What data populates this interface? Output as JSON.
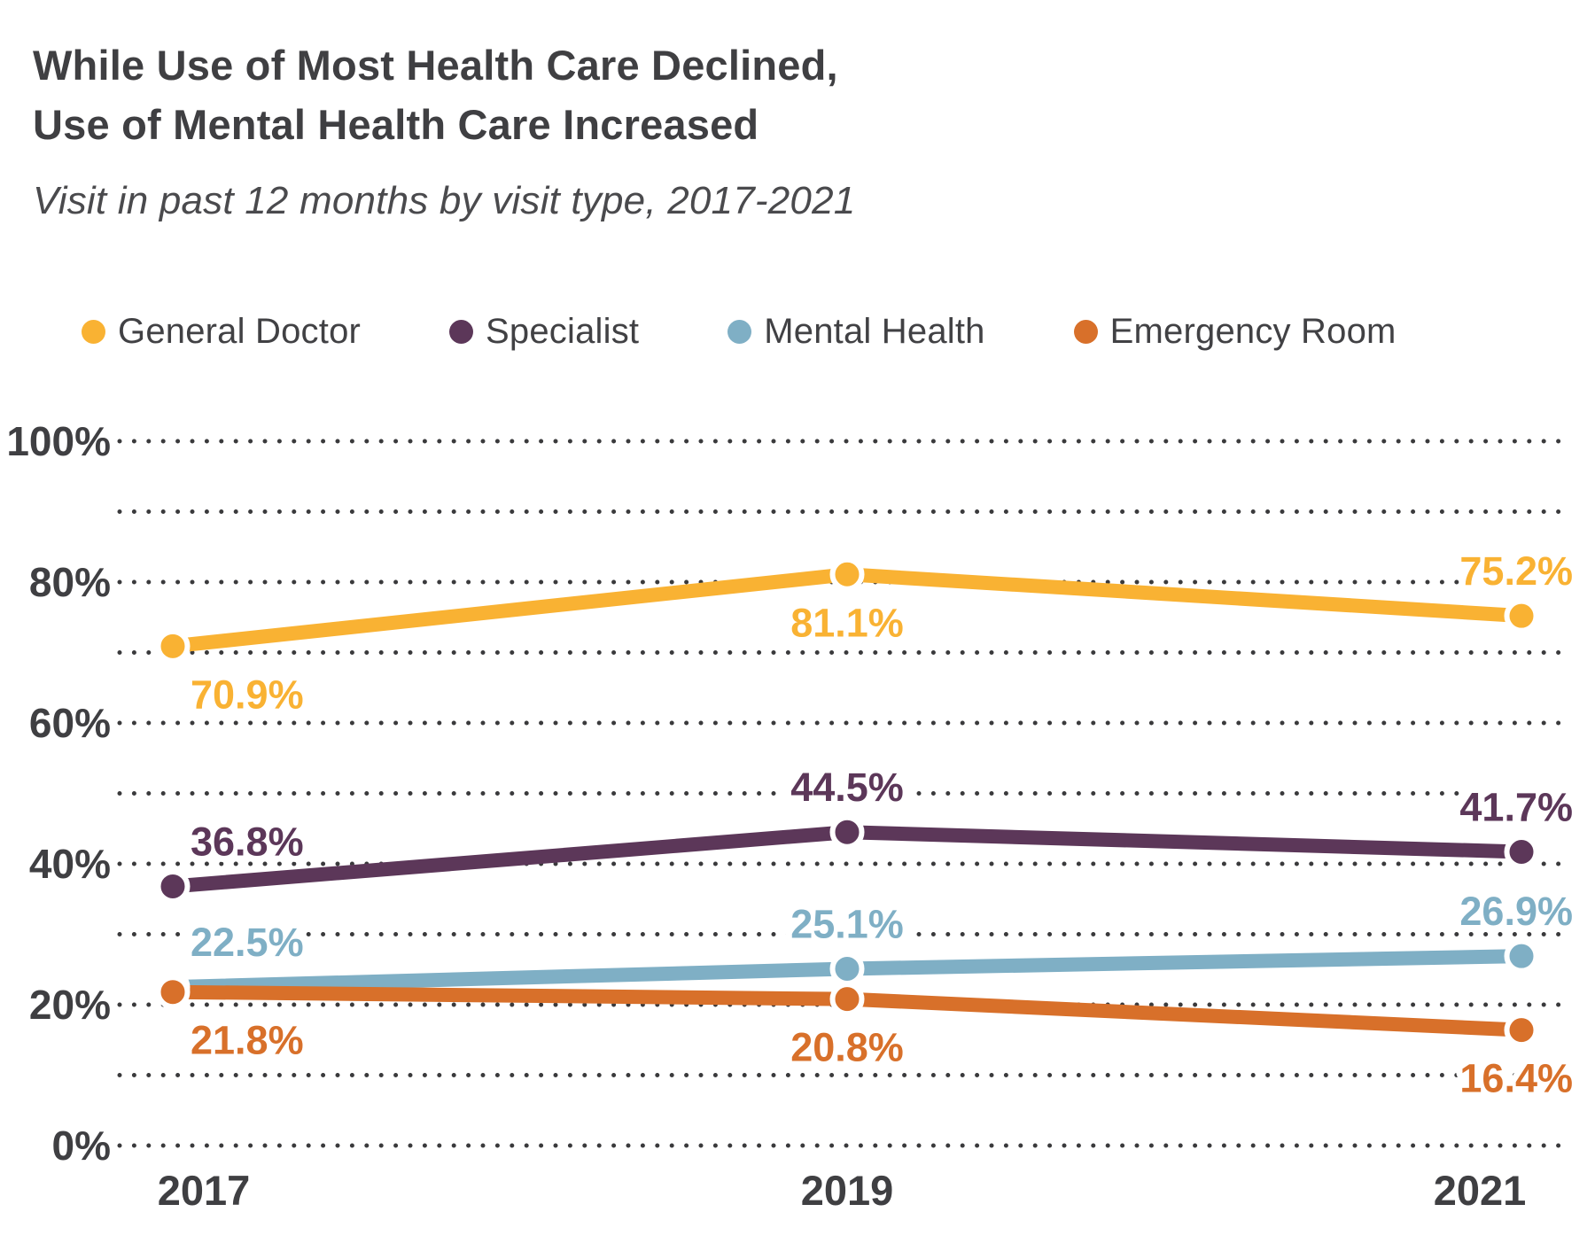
{
  "title": {
    "line1": "While Use of Most Health Care Declined,",
    "line2": "Use of Mental Health Care Increased"
  },
  "subtitle": "Visit in past 12 months by visit type, 2017-2021",
  "chart_data": {
    "type": "line",
    "x": [
      "2017",
      "2019",
      "2021"
    ],
    "series": [
      {
        "name": "General Doctor",
        "color": "#F9B233",
        "values": [
          70.9,
          81.1,
          75.2
        ],
        "point_labels": [
          "70.9%",
          "81.1%",
          "75.2%"
        ],
        "label_side": [
          "below",
          "below",
          "above"
        ]
      },
      {
        "name": "Specialist",
        "color": "#5C3759",
        "values": [
          36.8,
          44.5,
          41.7
        ],
        "point_labels": [
          "36.8%",
          "44.5%",
          "41.7%"
        ],
        "label_side": [
          "above",
          "above",
          "above"
        ]
      },
      {
        "name": "Mental Health",
        "color": "#7FAFC5",
        "values": [
          22.5,
          25.1,
          26.9
        ],
        "point_labels": [
          "22.5%",
          "25.1%",
          "26.9%"
        ],
        "label_side": [
          "above",
          "above",
          "above"
        ]
      },
      {
        "name": "Emergency Room",
        "color": "#D8702A",
        "values": [
          21.8,
          20.8,
          16.4
        ],
        "point_labels": [
          "21.8%",
          "20.8%",
          "16.4%"
        ],
        "label_side": [
          "below",
          "below",
          "below"
        ]
      }
    ],
    "title": "While Use of Most Health Care Declined, Use of Mental Health Care Increased",
    "xlabel": "",
    "ylabel": "",
    "ylim": [
      0,
      100
    ],
    "y_grid_step": 10,
    "y_tick_step": 20,
    "y_tick_labels": [
      "0%",
      "20%",
      "40%",
      "60%",
      "80%",
      "100%"
    ],
    "grid": "dotted-horizontal",
    "legend_position": "top"
  },
  "colors": {
    "text": "#3F3F42",
    "axis_text": "#3F3F42",
    "gridline": "#3A3A3C",
    "background": "#FFFFFF"
  }
}
